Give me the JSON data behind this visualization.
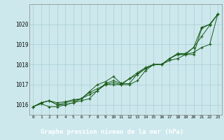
{
  "title": "Graphe pression niveau de la mer (hPa)",
  "background_color": "#cce8ec",
  "plot_bg_color": "#cce8ec",
  "grid_color": "#aacdd4",
  "line_color": "#1a5c1a",
  "title_bg": "#2d6b2d",
  "title_fg": "#ffffff",
  "xlim": [
    -0.5,
    23.5
  ],
  "ylim": [
    1015.5,
    1021.0
  ],
  "yticks": [
    1016,
    1017,
    1018,
    1019,
    1020
  ],
  "xticks": [
    0,
    1,
    2,
    3,
    4,
    5,
    6,
    7,
    8,
    9,
    10,
    11,
    12,
    13,
    14,
    15,
    16,
    17,
    18,
    19,
    20,
    21,
    22,
    23
  ],
  "series": [
    [
      1015.9,
      1016.1,
      1016.2,
      1016.0,
      1016.0,
      1016.1,
      1016.2,
      1016.3,
      1016.7,
      1017.0,
      1017.0,
      1017.0,
      1017.0,
      1017.2,
      1017.7,
      1018.0,
      1018.0,
      1018.2,
      1018.3,
      1018.5,
      1018.5,
      1019.8,
      1020.0,
      1020.5
    ],
    [
      1015.9,
      1016.1,
      1016.2,
      1016.0,
      1016.1,
      1016.2,
      1016.3,
      1016.6,
      1016.8,
      1017.0,
      1017.1,
      1017.0,
      1017.3,
      1017.5,
      1017.8,
      1018.0,
      1018.0,
      1018.3,
      1018.5,
      1018.5,
      1018.6,
      1018.85,
      1019.0,
      1020.5
    ],
    [
      1015.9,
      1016.05,
      1015.9,
      1015.9,
      1016.0,
      1016.1,
      1016.3,
      1016.5,
      1016.7,
      1017.05,
      1017.2,
      1017.05,
      1017.05,
      1017.55,
      1017.8,
      1018.0,
      1018.0,
      1018.3,
      1018.5,
      1018.5,
      1018.85,
      1019.85,
      1020.0,
      1020.5
    ],
    [
      1015.9,
      1016.1,
      1016.2,
      1016.1,
      1016.15,
      1016.25,
      1016.3,
      1016.65,
      1017.0,
      1017.15,
      1017.4,
      1017.05,
      1017.3,
      1017.6,
      1017.85,
      1018.0,
      1018.0,
      1018.3,
      1018.55,
      1018.55,
      1018.85,
      1019.4,
      1019.95,
      1020.5
    ]
  ]
}
